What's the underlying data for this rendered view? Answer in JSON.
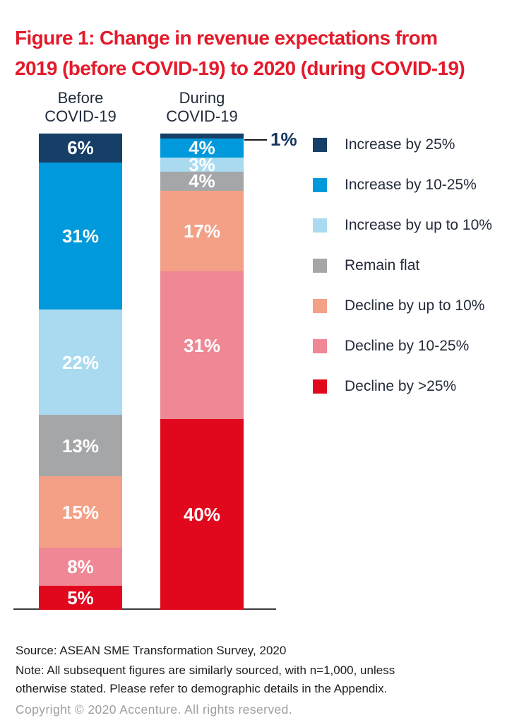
{
  "title": {
    "text": "Figure 1: Change in revenue expectations from\n2019 (before COVID-19) to 2020 (during COVID-19)"
  },
  "chart_data": {
    "type": "bar",
    "stacked": true,
    "orientation": "vertical",
    "unit": "%",
    "ylim": [
      0,
      100
    ],
    "grid": false,
    "legend_position": "right",
    "categories": [
      "Before COVID-19",
      "During COVID-19"
    ],
    "category_labels": [
      "Before\nCOVID-19",
      "During\nCOVID-19"
    ],
    "series": [
      {
        "name": "Increase by 25%",
        "color": "#163F68",
        "values": [
          6,
          1
        ]
      },
      {
        "name": "Increase by 10-25%",
        "color": "#0099DB",
        "values": [
          31,
          4
        ]
      },
      {
        "name": "Increase by up to 10%",
        "color": "#A9DAEF",
        "values": [
          22,
          3
        ]
      },
      {
        "name": "Remain flat",
        "color": "#A5A6A8",
        "values": [
          13,
          4
        ]
      },
      {
        "name": "Decline by up to 10%",
        "color": "#F4A087",
        "values": [
          15,
          17
        ]
      },
      {
        "name": "Decline by 10-25%",
        "color": "#EF8795",
        "values": [
          8,
          31
        ]
      },
      {
        "name": "Decline by >25%",
        "color": "#E1071C",
        "values": [
          5,
          40
        ]
      }
    ],
    "data_labels": {
      "before": [
        "6%",
        "31%",
        "22%",
        "13%",
        "15%",
        "8%",
        "5%"
      ],
      "during": [
        "1%",
        "4%",
        "3%",
        "4%",
        "17%",
        "31%",
        "40%"
      ]
    },
    "callout": {
      "category": "During COVID-19",
      "series": "Increase by 25%",
      "label": "1%"
    }
  },
  "footer": {
    "source": "Source: ASEAN SME Transformation Survey, 2020",
    "note": "Note: All subsequent figures are similarly sourced, with n=1,000, unless\notherwise stated. Please refer to demographic details in the Appendix.",
    "copyright": "Copyright © 2020 Accenture. All rights reserved."
  },
  "colors": {
    "title_red": "#E31A2B",
    "axis_line": "#3C3C3C",
    "header_text": "#222B3A",
    "legend_text": "#242B3A",
    "footer_text": "#1E1E1E",
    "copyright_text": "#9C9EA0",
    "background": "#FFFFFF"
  }
}
